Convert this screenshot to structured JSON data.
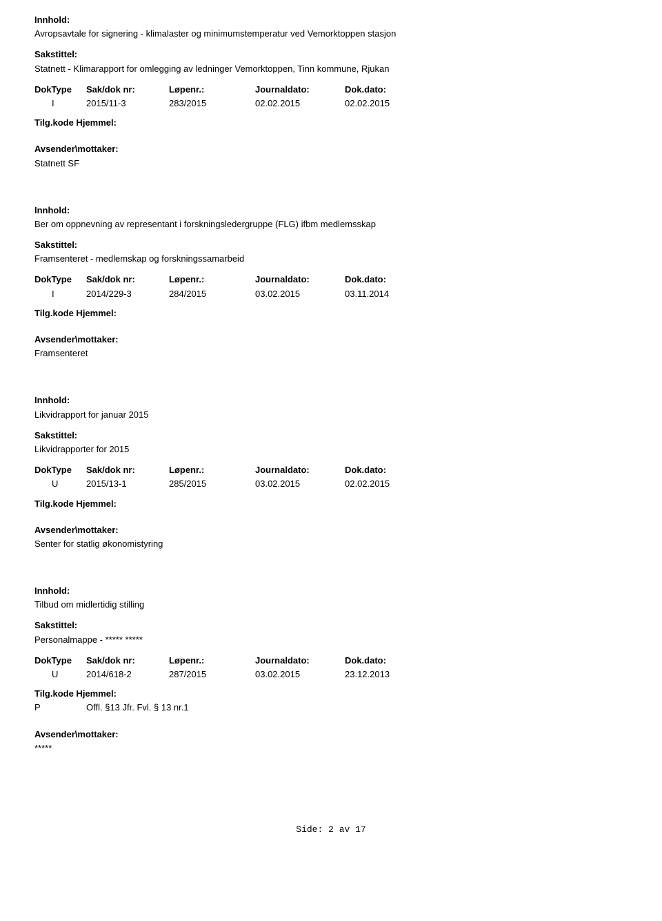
{
  "labels": {
    "innhold": "Innhold:",
    "sakstittel": "Sakstittel:",
    "doktype": "DokType",
    "sakdoknr": "Sak/dok nr:",
    "lopenr": "Løpenr.:",
    "journaldato": "Journaldato:",
    "dokdato": "Dok.dato:",
    "tilgkode": "Tilg.kode",
    "hjemmel": "Hjemmel:",
    "avsender": "Avsender\\mottaker:"
  },
  "records": [
    {
      "innhold": "Avropsavtale for signering - klimalaster og minimumstemperatur ved Vemorktoppen stasjon",
      "sakstittel": "Statnett - Klimarapport for omlegging av ledninger Vemorktoppen, Tinn kommune, Rjukan",
      "doktype": "I",
      "sakdoknr": "2015/11-3",
      "lopenr": "283/2015",
      "journaldato": "02.02.2015",
      "dokdato": "02.02.2015",
      "hjemmel_code": "",
      "hjemmel_text": "",
      "avsender": "Statnett SF"
    },
    {
      "innhold": "Ber om oppnevning av representant i forskningsledergruppe (FLG) ifbm medlemsskap",
      "sakstittel": "Framsenteret - medlemskap og forskningssamarbeid",
      "doktype": "I",
      "sakdoknr": "2014/229-3",
      "lopenr": "284/2015",
      "journaldato": "03.02.2015",
      "dokdato": "03.11.2014",
      "hjemmel_code": "",
      "hjemmel_text": "",
      "avsender": "Framsenteret"
    },
    {
      "innhold": "Likvidrapport for januar 2015",
      "sakstittel": "Likvidrapporter for 2015",
      "doktype": "U",
      "sakdoknr": "2015/13-1",
      "lopenr": "285/2015",
      "journaldato": "03.02.2015",
      "dokdato": "02.02.2015",
      "hjemmel_code": "",
      "hjemmel_text": "",
      "avsender": "Senter for statlig økonomistyring"
    },
    {
      "innhold": "Tilbud om midlertidig stilling",
      "sakstittel": "Personalmappe - ***** *****",
      "doktype": "U",
      "sakdoknr": "2014/618-2",
      "lopenr": "287/2015",
      "journaldato": "03.02.2015",
      "dokdato": "23.12.2013",
      "hjemmel_code": "P",
      "hjemmel_text": "Offl. §13 Jfr. Fvl. § 13 nr.1",
      "avsender": "*****"
    }
  ],
  "footer": {
    "text": "Side: 2 av 17"
  }
}
